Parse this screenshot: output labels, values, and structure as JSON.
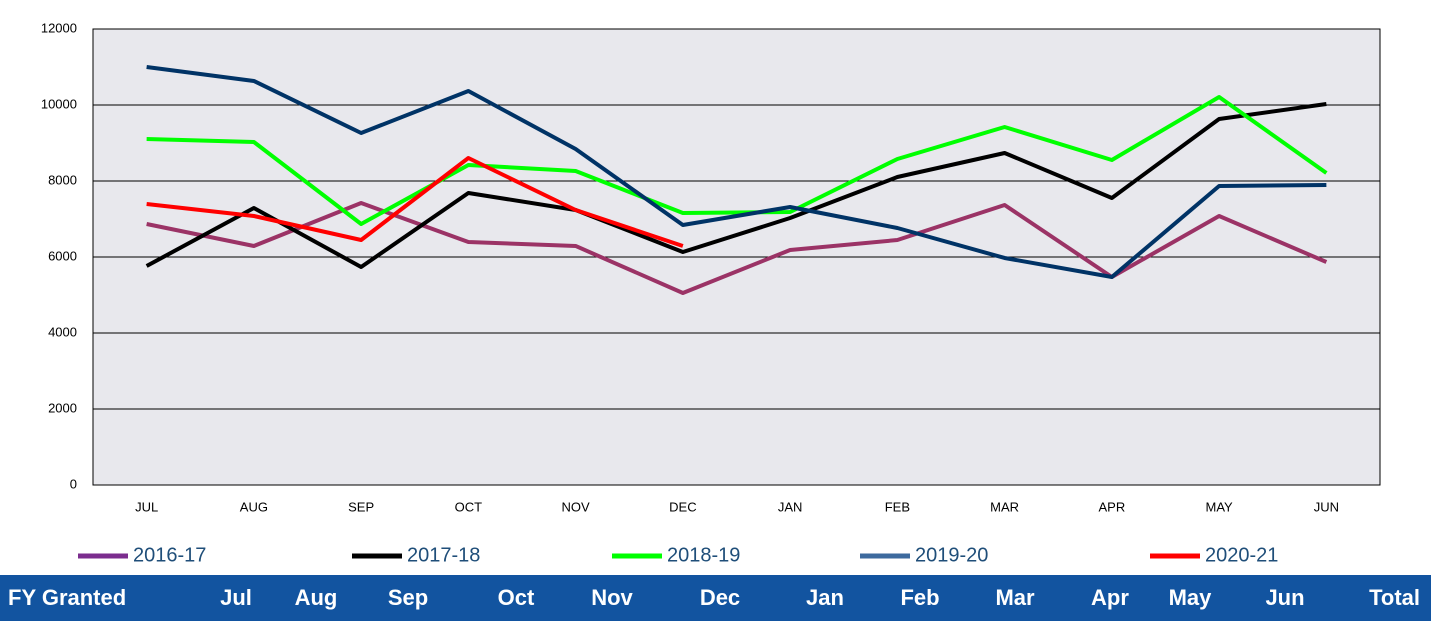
{
  "chart_data": {
    "type": "line",
    "categories": [
      "JUL",
      "AUG",
      "SEP",
      "OCT",
      "NOV",
      "DEC",
      "JAN",
      "FEB",
      "MAR",
      "APR",
      "MAY",
      "JUN"
    ],
    "series": [
      {
        "name": "2016-17",
        "color": "#9b3366",
        "legend_color": "#7b2d8e",
        "values": [
          6868,
          6290,
          7420,
          6395,
          6290,
          5053,
          6184,
          6447,
          7368,
          5474,
          7079,
          5868
        ]
      },
      {
        "name": "2017-18",
        "color": "#000000",
        "legend_color": "#000000",
        "values": [
          5763,
          7289,
          5737,
          7684,
          7237,
          6132,
          7026,
          8105,
          8737,
          7553,
          9632,
          10026
        ]
      },
      {
        "name": "2018-19",
        "color": "#00ff00",
        "legend_color": "#00ff00",
        "values": [
          9105,
          9026,
          6868,
          8421,
          8263,
          7158,
          7184,
          8579,
          9421,
          8553,
          10211,
          8211
        ]
      },
      {
        "name": "2019-20",
        "color": "#003366",
        "legend_color": "#3d6a9e",
        "values": [
          11000,
          10632,
          9263,
          10368,
          8842,
          6842,
          7316,
          6763,
          5974,
          5474,
          7868,
          7895
        ]
      },
      {
        "name": "2020-21",
        "color": "#ff0000",
        "legend_color": "#ff0000",
        "values": [
          7395,
          7079,
          6447,
          8605,
          7237,
          6289,
          null,
          null,
          null,
          null,
          null,
          null
        ]
      }
    ],
    "ylim": [
      0,
      12000
    ],
    "yticks": [
      0,
      2000,
      4000,
      6000,
      8000,
      10000,
      12000
    ],
    "grid": true,
    "legend": "bottom"
  },
  "table": {
    "header": [
      "FY Granted",
      "Jul",
      "Aug",
      "Sep",
      "Oct",
      "Nov",
      "Dec",
      "Jan",
      "Feb",
      "Mar",
      "Apr",
      "May",
      "Jun",
      "Total"
    ]
  }
}
